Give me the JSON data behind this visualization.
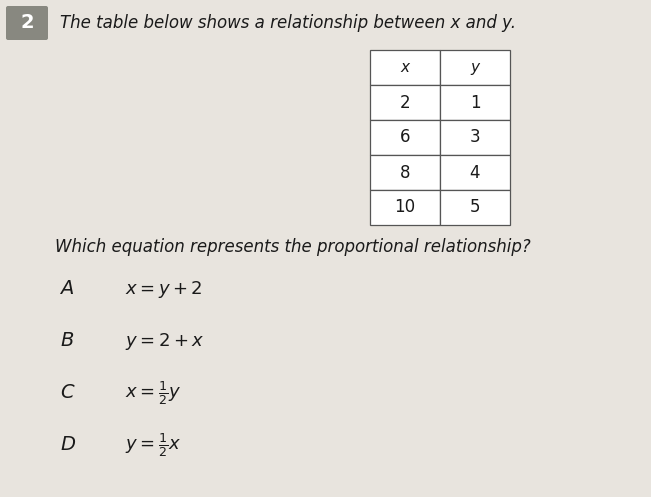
{
  "question_number": "2",
  "question_text": "The table below shows a relationship between x and y.",
  "table_headers": [
    "x",
    "y"
  ],
  "table_data": [
    [
      2,
      1
    ],
    [
      6,
      3
    ],
    [
      8,
      4
    ],
    [
      10,
      5
    ]
  ],
  "sub_question": "Which equation represents the proportional relationship?",
  "options": [
    {
      "label": "A",
      "eq": "x = y + 2"
    },
    {
      "label": "B",
      "eq": "y = 2 + x"
    },
    {
      "label": "C",
      "eq": "x = \\frac{1}{2}y"
    },
    {
      "label": "D",
      "eq": "y = \\frac{1}{2}x"
    }
  ],
  "bg_color": "#e8e4de",
  "table_bg": "#ffffff",
  "text_color": "#1a1a1a",
  "question_number_bg": "#888880",
  "question_number_color": "#ffffff"
}
